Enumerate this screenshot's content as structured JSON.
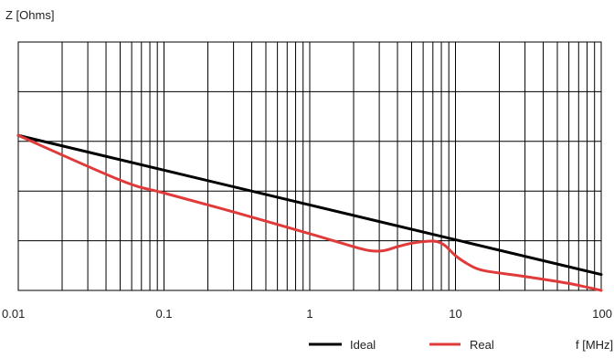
{
  "chart_data": {
    "type": "line",
    "title": "",
    "ylabel": "Z [Ohms]",
    "xlabel": "f [MHz]",
    "xscale": "log",
    "xlim": [
      0.01,
      100
    ],
    "yscale": "log",
    "y_decades_shown": 4,
    "grid": true,
    "legend_position": "bottom-right",
    "x_tick_labels": [
      "0.01",
      "0.1",
      "1",
      "10",
      "100"
    ],
    "x_ticks": [
      0.01,
      0.1,
      1,
      10,
      100
    ],
    "series": [
      {
        "name": "Ideal",
        "color": "#000000",
        "points": [
          [
            0.01,
            3.12
          ],
          [
            100,
            0.32
          ]
        ]
      },
      {
        "name": "Real",
        "color": "#e03a3a",
        "points": [
          [
            0.01,
            3.12
          ],
          [
            0.05,
            2.22
          ],
          [
            0.1,
            1.96
          ],
          [
            0.3,
            1.58
          ],
          [
            1,
            1.14
          ],
          [
            2,
            0.88
          ],
          [
            2.6,
            0.8
          ],
          [
            3.2,
            0.8
          ],
          [
            4,
            0.88
          ],
          [
            5,
            0.95
          ],
          [
            6.5,
            0.99
          ],
          [
            7.5,
            0.98
          ],
          [
            8.5,
            0.9
          ],
          [
            10,
            0.7
          ],
          [
            12,
            0.54
          ],
          [
            14,
            0.44
          ],
          [
            17,
            0.38
          ],
          [
            30,
            0.28
          ],
          [
            60,
            0.14
          ],
          [
            100,
            0.0
          ]
        ]
      }
    ]
  },
  "colors": {
    "grid": "#000000",
    "ideal": "#000000",
    "real": "#e03a3a"
  }
}
